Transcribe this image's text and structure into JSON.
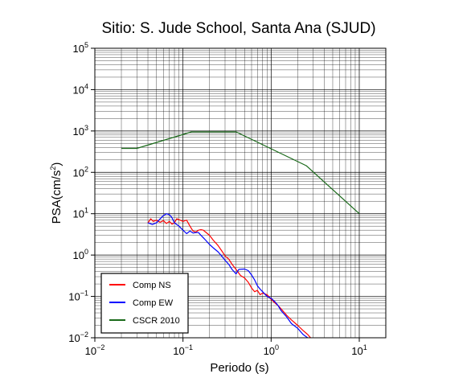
{
  "chart_data": {
    "type": "line",
    "title": "Sitio: S. Jude School, Santa Ana (SJUD)",
    "xlabel": "Periodo (s)",
    "ylabel": "PSA(cm/s²)",
    "ylabel_base": "PSA(cm/s",
    "ylabel_sup": "2",
    "ylabel_end": ")",
    "x_scale": "log",
    "y_scale": "log",
    "xlim": [
      0.01,
      20
    ],
    "ylim": [
      0.01,
      100000
    ],
    "grid": true,
    "legend_position": "bottom-left",
    "x_ticks": [
      {
        "value": 0.01,
        "base": "10",
        "exp": "−2"
      },
      {
        "value": 0.1,
        "base": "10",
        "exp": "−1"
      },
      {
        "value": 1,
        "base": "10",
        "exp": "0"
      },
      {
        "value": 10,
        "base": "10",
        "exp": "1"
      }
    ],
    "y_ticks": [
      {
        "value": 0.01,
        "base": "10",
        "exp": "−2"
      },
      {
        "value": 0.1,
        "base": "10",
        "exp": "−1"
      },
      {
        "value": 1,
        "base": "10",
        "exp": "0"
      },
      {
        "value": 10,
        "base": "10",
        "exp": "1"
      },
      {
        "value": 100,
        "base": "10",
        "exp": "2"
      },
      {
        "value": 1000,
        "base": "10",
        "exp": "3"
      },
      {
        "value": 10000,
        "base": "10",
        "exp": "4"
      },
      {
        "value": 100000,
        "base": "10",
        "exp": "5"
      }
    ],
    "series": [
      {
        "name": "Comp NS",
        "color": "#ff0000",
        "points": [
          [
            0.04,
            6.0
          ],
          [
            0.043,
            7.5
          ],
          [
            0.046,
            6.5
          ],
          [
            0.05,
            7.0
          ],
          [
            0.055,
            6.2
          ],
          [
            0.06,
            6.8
          ],
          [
            0.065,
            5.8
          ],
          [
            0.07,
            6.5
          ],
          [
            0.075,
            5.6
          ],
          [
            0.08,
            6.0
          ],
          [
            0.085,
            7.5
          ],
          [
            0.09,
            7.2
          ],
          [
            0.1,
            6.5
          ],
          [
            0.11,
            7.0
          ],
          [
            0.12,
            5.0
          ],
          [
            0.13,
            3.8
          ],
          [
            0.14,
            3.6
          ],
          [
            0.15,
            4.0
          ],
          [
            0.16,
            4.1
          ],
          [
            0.17,
            4.0
          ],
          [
            0.18,
            3.6
          ],
          [
            0.2,
            3.0
          ],
          [
            0.22,
            2.3
          ],
          [
            0.25,
            1.7
          ],
          [
            0.28,
            1.2
          ],
          [
            0.3,
            0.95
          ],
          [
            0.33,
            0.8
          ],
          [
            0.36,
            0.6
          ],
          [
            0.4,
            0.45
          ],
          [
            0.45,
            0.32
          ],
          [
            0.5,
            0.28
          ],
          [
            0.55,
            0.22
          ],
          [
            0.6,
            0.16
          ],
          [
            0.65,
            0.13
          ],
          [
            0.7,
            0.14
          ],
          [
            0.75,
            0.11
          ],
          [
            0.8,
            0.12
          ],
          [
            0.9,
            0.11
          ],
          [
            1.0,
            0.085
          ],
          [
            1.1,
            0.07
          ],
          [
            1.2,
            0.06
          ],
          [
            1.3,
            0.05
          ],
          [
            1.5,
            0.035
          ],
          [
            1.7,
            0.027
          ],
          [
            2.0,
            0.02
          ],
          [
            2.3,
            0.015
          ],
          [
            2.6,
            0.012
          ],
          [
            2.8,
            0.01
          ]
        ]
      },
      {
        "name": "Comp EW",
        "color": "#0000ff",
        "points": [
          [
            0.04,
            6.0
          ],
          [
            0.045,
            5.5
          ],
          [
            0.05,
            6.0
          ],
          [
            0.055,
            7.5
          ],
          [
            0.06,
            9.0
          ],
          [
            0.065,
            10.0
          ],
          [
            0.07,
            9.5
          ],
          [
            0.075,
            8.0
          ],
          [
            0.08,
            6.0
          ],
          [
            0.085,
            5.5
          ],
          [
            0.09,
            5.0
          ],
          [
            0.1,
            4.0
          ],
          [
            0.11,
            3.3
          ],
          [
            0.12,
            3.8
          ],
          [
            0.13,
            3.4
          ],
          [
            0.14,
            3.5
          ],
          [
            0.15,
            3.5
          ],
          [
            0.16,
            3.0
          ],
          [
            0.18,
            2.3
          ],
          [
            0.2,
            1.8
          ],
          [
            0.22,
            1.5
          ],
          [
            0.25,
            1.2
          ],
          [
            0.28,
            0.9
          ],
          [
            0.3,
            0.75
          ],
          [
            0.33,
            0.6
          ],
          [
            0.36,
            0.45
          ],
          [
            0.4,
            0.35
          ],
          [
            0.43,
            0.45
          ],
          [
            0.5,
            0.46
          ],
          [
            0.55,
            0.42
          ],
          [
            0.6,
            0.33
          ],
          [
            0.65,
            0.25
          ],
          [
            0.7,
            0.18
          ],
          [
            0.75,
            0.15
          ],
          [
            0.8,
            0.13
          ],
          [
            0.9,
            0.1
          ],
          [
            1.0,
            0.09
          ],
          [
            1.1,
            0.075
          ],
          [
            1.2,
            0.06
          ],
          [
            1.3,
            0.045
          ],
          [
            1.5,
            0.032
          ],
          [
            1.7,
            0.022
          ],
          [
            2.0,
            0.017
          ],
          [
            2.3,
            0.012
          ],
          [
            2.6,
            0.01
          ]
        ]
      },
      {
        "name": "CSCR 2010",
        "color": "#1a6a1a",
        "points": [
          [
            0.02,
            380
          ],
          [
            0.03,
            380
          ],
          [
            0.125,
            950
          ],
          [
            0.4,
            950
          ],
          [
            2.5,
            145
          ],
          [
            10.0,
            10
          ]
        ]
      }
    ]
  }
}
